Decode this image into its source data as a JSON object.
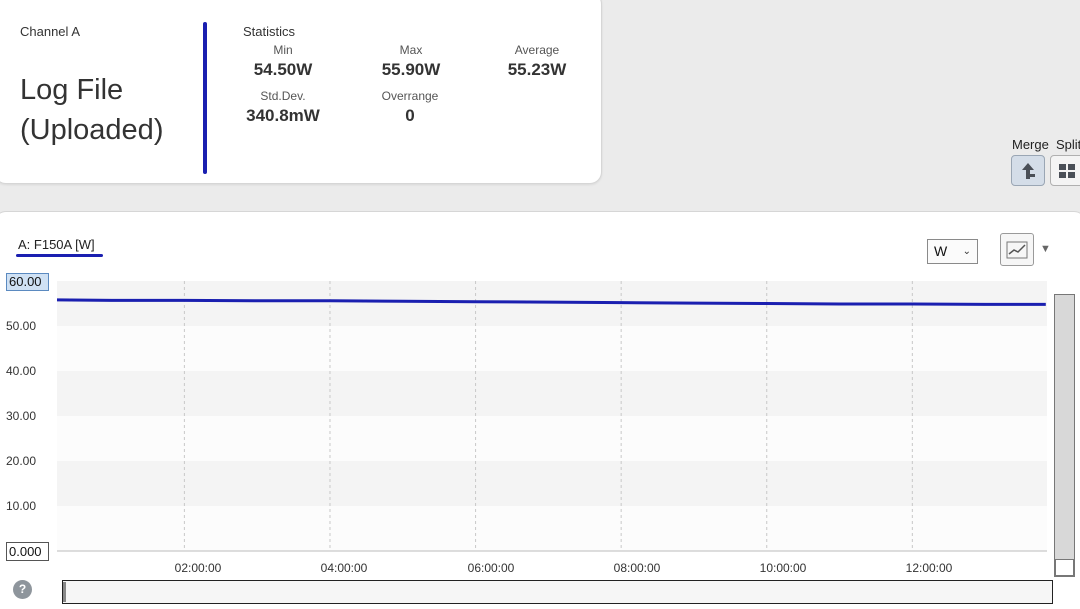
{
  "channel": {
    "label": "Channel A",
    "title_line1": "Log File",
    "title_line2": "(Uploaded)"
  },
  "statistics": {
    "heading": "Statistics",
    "min_label": "Min",
    "min_value": "54.50W",
    "max_label": "Max",
    "max_value": "55.90W",
    "avg_label": "Average",
    "avg_value": "55.23W",
    "stddev_label": "Std.Dev.",
    "stddev_value": "340.8mW",
    "overrange_label": "Overrange",
    "overrange_value": "0"
  },
  "toolbar": {
    "merge_label": "Merge",
    "split_label": "Split",
    "unit_select": "W",
    "chevron": "⌄",
    "dropdown_arrow": "▼",
    "help": "?"
  },
  "icons": {
    "merge": "merge-icon",
    "split": "grid-icon",
    "chart_type": "line-chart-icon",
    "help": "help-icon"
  },
  "colors": {
    "series": "#1a1fb0",
    "accent": "#1a1fb0"
  },
  "chart_data": {
    "type": "line",
    "series_label": "A: F150A [W]",
    "ymax_label": "60.00",
    "ymin_label": "0.000",
    "ylim": [
      0,
      60
    ],
    "xlim_hours": [
      0.25,
      13.85
    ],
    "y_ticks": [
      "50.00",
      "40.00",
      "30.00",
      "20.00",
      "10.00"
    ],
    "x_ticks": [
      "02:00:00",
      "04:00:00",
      "06:00:00",
      "08:00:00",
      "10:00:00",
      "12:00:00"
    ],
    "grid": true,
    "series": [
      {
        "x": [
          "00:15:00",
          "01:00:00",
          "02:00:00",
          "03:00:00",
          "04:00:00",
          "05:00:00",
          "06:00:00",
          "07:00:00",
          "08:00:00",
          "09:00:00",
          "10:00:00",
          "11:00:00",
          "12:00:00",
          "13:00:00",
          "13:50:00"
        ],
        "y": [
          55.8,
          55.7,
          55.7,
          55.6,
          55.6,
          55.5,
          55.4,
          55.3,
          55.2,
          55.1,
          55.0,
          54.9,
          54.9,
          54.8,
          54.8
        ]
      }
    ]
  }
}
